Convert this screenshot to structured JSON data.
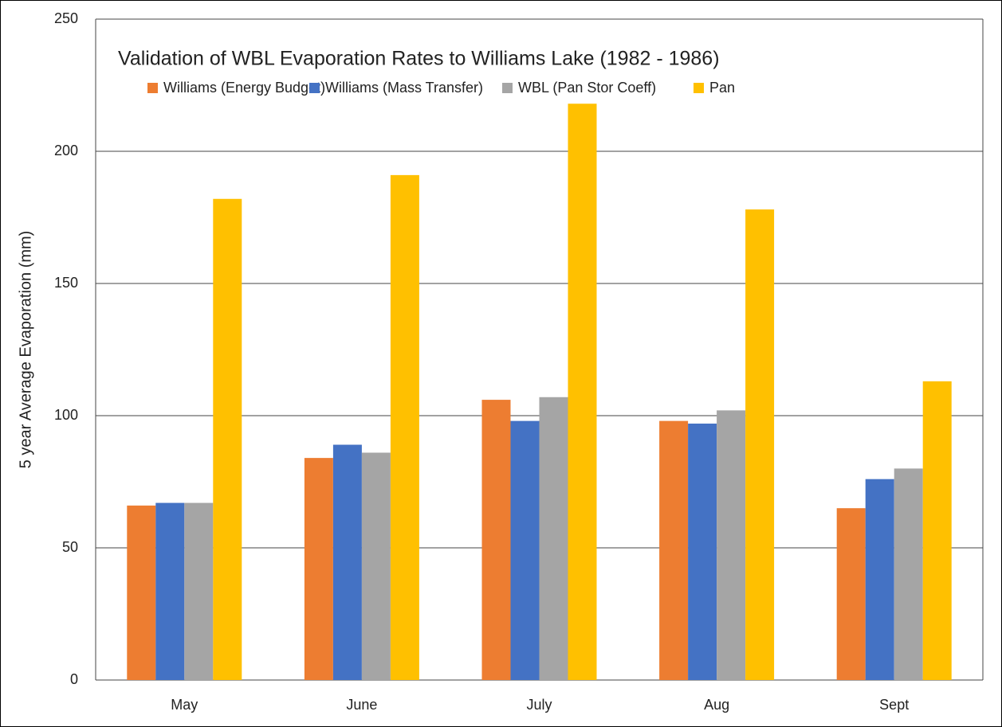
{
  "chart_data": {
    "type": "bar",
    "title": "Validation of WBL Evaporation Rates to Williams Lake (1982 - 1986)",
    "y_label": "5 year Average  Evaporation (mm)",
    "categories": [
      "May",
      "June",
      "July",
      "Aug",
      "Sept"
    ],
    "series": [
      {
        "name": "Williams (Energy Budget)",
        "color": "#ED7D31",
        "values": [
          66,
          84,
          106,
          98,
          65
        ]
      },
      {
        "name": "Williams (Mass Transfer)",
        "color": "#4472C4",
        "values": [
          67,
          89,
          98,
          97,
          76
        ]
      },
      {
        "name": "WBL (Pan Stor Coeff)",
        "color": "#A5A5A5",
        "values": [
          67,
          86,
          107,
          102,
          80
        ]
      },
      {
        "name": "Pan",
        "color": "#FFC000",
        "values": [
          182,
          191,
          218,
          178,
          113
        ]
      }
    ],
    "ylim": [
      0,
      250
    ],
    "yticks": [
      0,
      50,
      100,
      150,
      200,
      250
    ],
    "grid": true
  }
}
